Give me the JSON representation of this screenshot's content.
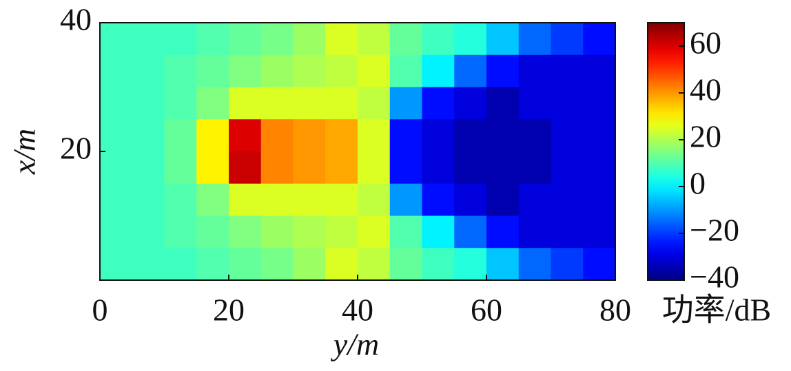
{
  "chart_data": {
    "type": "heatmap",
    "x_label": "y/m",
    "y_label": "x/m",
    "colorbar_label": "功率/dB",
    "colormap": "jet",
    "x": [
      2.5,
      7.5,
      12.5,
      17.5,
      22.5,
      27.5,
      32.5,
      37.5,
      42.5,
      47.5,
      52.5,
      57.5,
      62.5,
      67.5,
      72.5,
      77.5
    ],
    "y": [
      37.5,
      32.5,
      27.5,
      22.5,
      17.5,
      12.5,
      7.5,
      2.5
    ],
    "values": [
      [
        8,
        8,
        8,
        10,
        12,
        14,
        18,
        25,
        22,
        12,
        8,
        5,
        -5,
        -15,
        -20,
        -25
      ],
      [
        8,
        8,
        10,
        12,
        15,
        18,
        20,
        22,
        25,
        10,
        0,
        -15,
        -25,
        -30,
        -30,
        -30
      ],
      [
        8,
        8,
        10,
        15,
        25,
        25,
        25,
        25,
        22,
        -10,
        -25,
        -30,
        -35,
        -30,
        -30,
        -30
      ],
      [
        8,
        8,
        12,
        30,
        60,
        42,
        40,
        38,
        25,
        -25,
        -30,
        -35,
        -35,
        -35,
        -30,
        -30
      ],
      [
        8,
        8,
        12,
        30,
        62,
        42,
        40,
        38,
        25,
        -25,
        -30,
        -35,
        -35,
        -35,
        -30,
        -30
      ],
      [
        8,
        8,
        10,
        15,
        25,
        25,
        25,
        25,
        22,
        -10,
        -25,
        -30,
        -35,
        -30,
        -30,
        -30
      ],
      [
        8,
        8,
        10,
        12,
        15,
        18,
        20,
        22,
        25,
        10,
        0,
        -15,
        -25,
        -30,
        -30,
        -30
      ],
      [
        8,
        8,
        8,
        10,
        12,
        14,
        18,
        25,
        22,
        12,
        8,
        5,
        -5,
        -15,
        -20,
        -25
      ]
    ],
    "xlim": [
      0,
      80
    ],
    "xticks": [
      0,
      20,
      40,
      60,
      80
    ],
    "ylim": [
      0,
      40
    ],
    "yticks": [
      20,
      40
    ],
    "clim": [
      -40,
      70
    ],
    "cticks": [
      {
        "value": -40,
        "label": "−40"
      },
      {
        "value": -20,
        "label": "−20"
      },
      0,
      20,
      40,
      60
    ]
  }
}
